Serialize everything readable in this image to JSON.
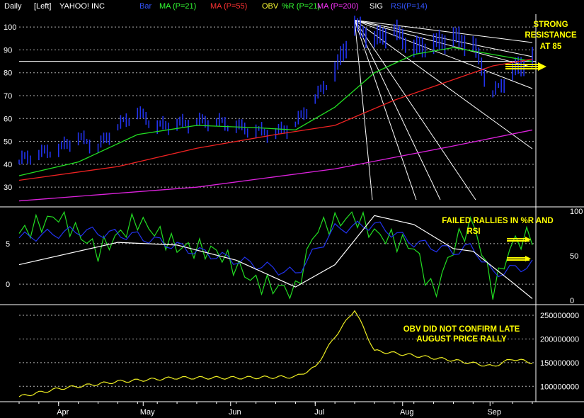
{
  "header": {
    "items": [
      {
        "text": "Daily",
        "color": "#ffffff"
      },
      {
        "text": "[Left]",
        "color": "#ffffff"
      },
      {
        "text": "YAHOO! INC",
        "color": "#ffffff"
      },
      {
        "text": "Bar",
        "color": "#3355ff"
      },
      {
        "text": "MA (P=21)",
        "color": "#33ff33"
      },
      {
        "text": "MA (P=55)",
        "color": "#ff3333"
      },
      {
        "text": "OBV",
        "color": "#ffff33"
      },
      {
        "text": "%R (P=21)",
        "color": "#33ff33"
      },
      {
        "text": "MA (P=200)",
        "color": "#ff33ff"
      },
      {
        "text": "SIG",
        "color": "#ffffff"
      },
      {
        "text": "RSI(P=14)",
        "color": "#3355ff"
      }
    ]
  },
  "annotations": {
    "resistance": [
      "STRONG",
      "RESISTANCE",
      "AT 85"
    ],
    "failed": [
      "FAILED RALLIES IN %R AND",
      "RSI"
    ],
    "obv": [
      "OBV DID NOT CONFIRM LATE",
      "AUGUST PRICE RALLY"
    ]
  },
  "colors": {
    "bar": "#2233ee",
    "ma21": "#22dd22",
    "ma55": "#ee2222",
    "ma200": "#dd22dd",
    "obv": "#eeee22",
    "pctR": "#22dd22",
    "rsi": "#2233ee",
    "sig": "#ffffff",
    "grid": "#ffffff",
    "annotation": "#ffff00",
    "axis": "#ffffff"
  },
  "chart_data": [
    {
      "type": "bar",
      "title": "YAHOO! INC",
      "subtitle": "Daily",
      "x": [
        "Apr",
        "May",
        "Jun",
        "Jul",
        "Aug",
        "Sep"
      ],
      "xlabel": "",
      "ylabel": "",
      "ylim": [
        22,
        105
      ],
      "yticks": [
        30,
        40,
        50,
        60,
        70,
        80,
        90,
        100
      ],
      "grid": true,
      "series": [
        {
          "name": "Bar",
          "values": [
            {
              "x": "Mar-18",
              "y": 41
            },
            {
              "x": "Mar-25",
              "y": 44
            },
            {
              "x": "Apr-01",
              "y": 46
            },
            {
              "x": "Apr-08",
              "y": 51
            },
            {
              "x": "Apr-15",
              "y": 47
            },
            {
              "x": "Apr-22",
              "y": 56
            },
            {
              "x": "Apr-29",
              "y": 62
            },
            {
              "x": "May-06",
              "y": 56
            },
            {
              "x": "May-13",
              "y": 57
            },
            {
              "x": "May-20",
              "y": 58
            },
            {
              "x": "May-27",
              "y": 58
            },
            {
              "x": "Jun-03",
              "y": 56
            },
            {
              "x": "Jun-10",
              "y": 54
            },
            {
              "x": "Jun-17",
              "y": 53
            },
            {
              "x": "Jun-24",
              "y": 57
            },
            {
              "x": "Jul-01",
              "y": 68
            },
            {
              "x": "Jul-08",
              "y": 80
            },
            {
              "x": "Jul-15",
              "y": 100
            },
            {
              "x": "Jul-22",
              "y": 94
            },
            {
              "x": "Jul-29",
              "y": 98
            },
            {
              "x": "Aug-05",
              "y": 90
            },
            {
              "x": "Aug-12",
              "y": 92
            },
            {
              "x": "Aug-19",
              "y": 95
            },
            {
              "x": "Aug-26",
              "y": 92
            },
            {
              "x": "Sep-02",
              "y": 70
            },
            {
              "x": "Sep-09",
              "y": 80
            },
            {
              "x": "Sep-16",
              "y": 86
            }
          ]
        },
        {
          "name": "MA (P=21)",
          "values": [
            {
              "x": "Mar-18",
              "y": 35
            },
            {
              "x": "Apr-08",
              "y": 41
            },
            {
              "x": "Apr-29",
              "y": 53
            },
            {
              "x": "May-20",
              "y": 57
            },
            {
              "x": "Jun-10",
              "y": 56
            },
            {
              "x": "Jun-24",
              "y": 55
            },
            {
              "x": "Jul-08",
              "y": 65
            },
            {
              "x": "Jul-22",
              "y": 80
            },
            {
              "x": "Aug-05",
              "y": 88
            },
            {
              "x": "Aug-19",
              "y": 91
            },
            {
              "x": "Sep-02",
              "y": 88
            },
            {
              "x": "Sep-16",
              "y": 85
            }
          ]
        },
        {
          "name": "MA (P=55)",
          "values": [
            {
              "x": "Mar-18",
              "y": 33
            },
            {
              "x": "Apr-22",
              "y": 39
            },
            {
              "x": "May-20",
              "y": 47
            },
            {
              "x": "Jun-17",
              "y": 53
            },
            {
              "x": "Jul-08",
              "y": 57
            },
            {
              "x": "Jul-29",
              "y": 68
            },
            {
              "x": "Aug-19",
              "y": 77
            },
            {
              "x": "Sep-02",
              "y": 83
            },
            {
              "x": "Sep-16",
              "y": 86
            }
          ]
        },
        {
          "name": "MA (P=200)",
          "values": [
            {
              "x": "Mar-18",
              "y": 24
            },
            {
              "x": "May-20",
              "y": 30
            },
            {
              "x": "Jul-08",
              "y": 38
            },
            {
              "x": "Aug-19",
              "y": 48
            },
            {
              "x": "Sep-16",
              "y": 55
            }
          ]
        }
      ],
      "annotations": [
        "STRONG RESISTANCE AT 85"
      ]
    },
    {
      "type": "line",
      "title": "",
      "x": [
        "Apr",
        "May",
        "Jun",
        "Jul",
        "Aug",
        "Sep"
      ],
      "left_axis": {
        "ylim": [
          -2,
          9
        ],
        "ticks": [
          0,
          5
        ]
      },
      "right_axis": {
        "ylim": [
          0,
          100
        ],
        "ticks": [
          0,
          50,
          100
        ]
      },
      "grid": true,
      "series": [
        {
          "name": "%R (P=21)",
          "axis": "right",
          "values": [
            {
              "x": "Mar-18",
              "y": 75
            },
            {
              "x": "Apr-01",
              "y": 95
            },
            {
              "x": "Apr-15",
              "y": 55
            },
            {
              "x": "Apr-29",
              "y": 90
            },
            {
              "x": "May-13",
              "y": 60
            },
            {
              "x": "May-27",
              "y": 55
            },
            {
              "x": "Jun-10",
              "y": 20
            },
            {
              "x": "Jun-24",
              "y": 10
            },
            {
              "x": "Jul-01",
              "y": 80
            },
            {
              "x": "Jul-15",
              "y": 95
            },
            {
              "x": "Jul-22",
              "y": 75
            },
            {
              "x": "Aug-05",
              "y": 60
            },
            {
              "x": "Aug-12",
              "y": 5
            },
            {
              "x": "Aug-19",
              "y": 60
            },
            {
              "x": "Aug-26",
              "y": 90
            },
            {
              "x": "Sep-02",
              "y": 10
            },
            {
              "x": "Sep-09",
              "y": 65
            },
            {
              "x": "Sep-16",
              "y": 72
            }
          ]
        },
        {
          "name": "RSI(P=14)",
          "axis": "right",
          "values": [
            {
              "x": "Mar-18",
              "y": 70
            },
            {
              "x": "Apr-08",
              "y": 78
            },
            {
              "x": "Apr-29",
              "y": 72
            },
            {
              "x": "May-20",
              "y": 55
            },
            {
              "x": "Jun-10",
              "y": 40
            },
            {
              "x": "Jun-24",
              "y": 30
            },
            {
              "x": "Jul-08",
              "y": 80
            },
            {
              "x": "Jul-22",
              "y": 85
            },
            {
              "x": "Aug-05",
              "y": 65
            },
            {
              "x": "Aug-19",
              "y": 55
            },
            {
              "x": "Aug-26",
              "y": 60
            },
            {
              "x": "Sep-02",
              "y": 30
            },
            {
              "x": "Sep-16",
              "y": 40
            }
          ]
        },
        {
          "name": "SIG",
          "axis": "right",
          "values": [
            {
              "x": "Mar-18",
              "y": 40
            },
            {
              "x": "Apr-22",
              "y": 65
            },
            {
              "x": "May-13",
              "y": 62
            },
            {
              "x": "Jun-03",
              "y": 45
            },
            {
              "x": "Jun-24",
              "y": 15
            },
            {
              "x": "Jul-08",
              "y": 40
            },
            {
              "x": "Jul-22",
              "y": 95
            },
            {
              "x": "Aug-05",
              "y": 85
            },
            {
              "x": "Aug-19",
              "y": 58
            },
            {
              "x": "Aug-26",
              "y": 55
            },
            {
              "x": "Sep-09",
              "y": 20
            },
            {
              "x": "Sep-16",
              "y": 2
            }
          ]
        }
      ],
      "annotations": [
        "FAILED RALLIES IN %R AND RSI"
      ]
    },
    {
      "type": "line",
      "title": "",
      "x": [
        "Apr",
        "May",
        "Jun",
        "Jul",
        "Aug",
        "Sep"
      ],
      "ylim": [
        75000000,
        265000000
      ],
      "yticks": [
        100000000,
        150000000,
        200000000,
        250000000
      ],
      "grid": true,
      "series": [
        {
          "name": "OBV",
          "values": [
            {
              "x": "Mar-18",
              "y": 78000000
            },
            {
              "x": "Apr-01",
              "y": 95000000
            },
            {
              "x": "Apr-22",
              "y": 110000000
            },
            {
              "x": "May-13",
              "y": 118000000
            },
            {
              "x": "Jun-03",
              "y": 118000000
            },
            {
              "x": "Jun-24",
              "y": 120000000
            },
            {
              "x": "Jul-01",
              "y": 140000000
            },
            {
              "x": "Jul-08",
              "y": 205000000
            },
            {
              "x": "Jul-15",
              "y": 262000000
            },
            {
              "x": "Jul-22",
              "y": 175000000
            },
            {
              "x": "Aug-05",
              "y": 165000000
            },
            {
              "x": "Aug-19",
              "y": 155000000
            },
            {
              "x": "Sep-02",
              "y": 142000000
            },
            {
              "x": "Sep-09",
              "y": 158000000
            },
            {
              "x": "Sep-16",
              "y": 150000000
            }
          ]
        }
      ],
      "annotations": [
        "OBV DID NOT CONFIRM LATE AUGUST PRICE RALLY"
      ]
    }
  ]
}
